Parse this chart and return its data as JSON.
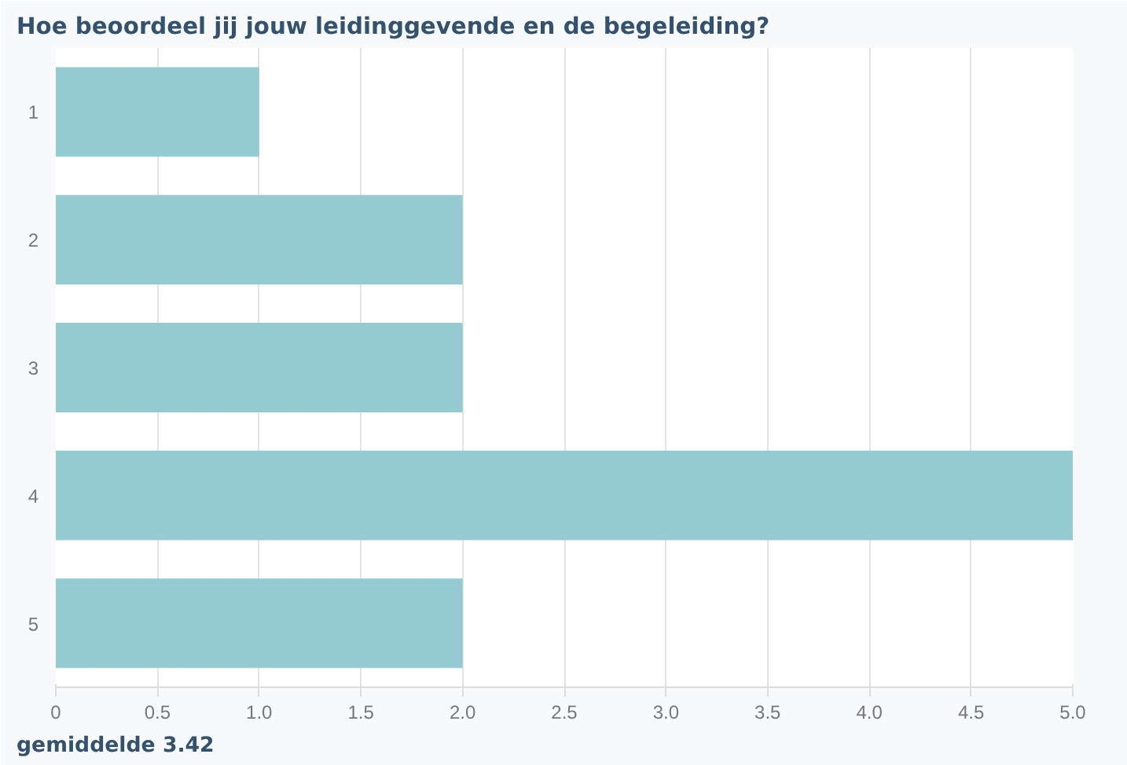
{
  "chart_data": {
    "type": "bar",
    "orientation": "horizontal",
    "title": "Hoe beoordeel jij jouw leidinggevende en de begeleiding?",
    "categories": [
      "1",
      "2",
      "3",
      "4",
      "5"
    ],
    "values": [
      1,
      2,
      2,
      5,
      2
    ],
    "color": "#93cbd1",
    "xlim": [
      0,
      5
    ],
    "xticks": [
      0,
      0.5,
      {
        "value": 1,
        "label": "1.0"
      },
      1.5,
      {
        "value": 2,
        "label": "2.0"
      },
      2.5,
      {
        "value": 3,
        "label": "3.0"
      },
      3.5,
      {
        "value": 4,
        "label": "4.0"
      },
      4.5,
      {
        "value": 5,
        "label": "5.0"
      }
    ],
    "grid": "x",
    "annotations": [
      "gemiddelde 3.42"
    ]
  }
}
